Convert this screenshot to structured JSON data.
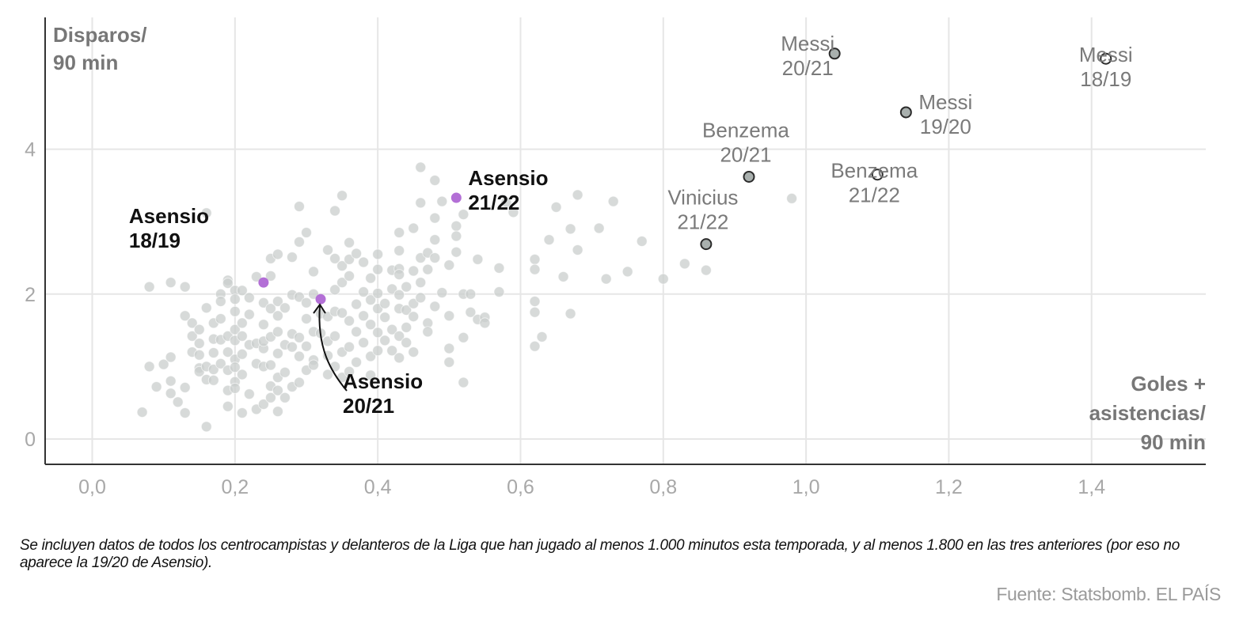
{
  "chart_data": {
    "type": "scatter",
    "title": "",
    "xlabel": [
      "Goles +",
      "asistencias/",
      "90 min"
    ],
    "ylabel": [
      "Disparos/",
      "90 min"
    ],
    "xlim": [
      -0.066,
      1.56
    ],
    "ylim": [
      -0.35,
      5.82
    ],
    "xticks": [
      0.0,
      0.2,
      0.4,
      0.6,
      0.8,
      1.0,
      1.2,
      1.4
    ],
    "xtick_labels": [
      "0,0",
      "0,2",
      "0,4",
      "0,6",
      "0,8",
      "1,0",
      "1,2",
      "1,4"
    ],
    "yticks": [
      0,
      2,
      4
    ],
    "ytick_labels": [
      "0",
      "2",
      "4"
    ],
    "grid": true,
    "colors": {
      "background_dot": "#c9cdcc",
      "asensio": "#b36fd6",
      "asensio_label": "#111111",
      "star_fill": "#a9b0ae",
      "star_stroke": "#2b2b2b",
      "star_label": "#7a7a7a",
      "axis": "#333333",
      "grid": "#e6e6e6",
      "tick": "#a8a8a8"
    },
    "highlighted": [
      {
        "name": "Messi",
        "season": "20/21",
        "x": 1.04,
        "y": 5.32,
        "group": "star",
        "fill": true
      },
      {
        "name": "Messi",
        "season": "19/20",
        "x": 1.14,
        "y": 4.51,
        "group": "star",
        "fill": true
      },
      {
        "name": "Messi",
        "season": "18/19",
        "x": 1.42,
        "y": 5.25,
        "group": "star",
        "fill": false
      },
      {
        "name": "Benzema",
        "season": "20/21",
        "x": 0.92,
        "y": 3.62,
        "group": "star",
        "fill": true
      },
      {
        "name": "Benzema",
        "season": "21/22",
        "x": 1.1,
        "y": 3.65,
        "group": "star",
        "fill": false
      },
      {
        "name": "Vinicius",
        "season": "21/22",
        "x": 0.86,
        "y": 2.69,
        "group": "star",
        "fill": true
      },
      {
        "name": "Asensio",
        "season": "18/19",
        "x": 0.24,
        "y": 2.16,
        "group": "asensio"
      },
      {
        "name": "Asensio",
        "season": "20/21",
        "x": 0.32,
        "y": 1.93,
        "group": "asensio"
      },
      {
        "name": "Asensio",
        "season": "21/22",
        "x": 0.51,
        "y": 3.33,
        "group": "asensio"
      }
    ],
    "others": [
      [
        0.07,
        0.37
      ],
      [
        0.08,
        2.1
      ],
      [
        0.08,
        1.0
      ],
      [
        0.1,
        1.03
      ],
      [
        0.09,
        0.72
      ],
      [
        0.11,
        2.16
      ],
      [
        0.11,
        1.13
      ],
      [
        0.11,
        0.8
      ],
      [
        0.11,
        0.63
      ],
      [
        0.12,
        0.51
      ],
      [
        0.13,
        2.1
      ],
      [
        0.13,
        1.7
      ],
      [
        0.13,
        0.71
      ],
      [
        0.13,
        0.36
      ],
      [
        0.14,
        1.2
      ],
      [
        0.14,
        1.6
      ],
      [
        0.14,
        1.42
      ],
      [
        0.15,
        1.51
      ],
      [
        0.15,
        1.32
      ],
      [
        0.15,
        1.16
      ],
      [
        0.15,
        0.98
      ],
      [
        0.15,
        0.93
      ],
      [
        0.16,
        3.12
      ],
      [
        0.16,
        1.81
      ],
      [
        0.16,
        1.0
      ],
      [
        0.16,
        0.82
      ],
      [
        0.16,
        0.17
      ],
      [
        0.17,
        1.6
      ],
      [
        0.17,
        1.38
      ],
      [
        0.17,
        1.19
      ],
      [
        0.17,
        0.96
      ],
      [
        0.17,
        0.81
      ],
      [
        0.18,
        2.0
      ],
      [
        0.18,
        1.9
      ],
      [
        0.18,
        1.66
      ],
      [
        0.18,
        1.37
      ],
      [
        0.18,
        1.04
      ],
      [
        0.19,
        2.19
      ],
      [
        0.19,
        2.15
      ],
      [
        0.19,
        1.42
      ],
      [
        0.19,
        1.2
      ],
      [
        0.19,
        0.95
      ],
      [
        0.19,
        0.67
      ],
      [
        0.19,
        0.45
      ],
      [
        0.2,
        2.05
      ],
      [
        0.2,
        1.93
      ],
      [
        0.2,
        1.76
      ],
      [
        0.2,
        1.51
      ],
      [
        0.2,
        1.36
      ],
      [
        0.2,
        1.1
      ],
      [
        0.2,
        0.99
      ],
      [
        0.2,
        0.79
      ],
      [
        0.2,
        0.7
      ],
      [
        0.21,
        2.05
      ],
      [
        0.21,
        1.6
      ],
      [
        0.21,
        1.42
      ],
      [
        0.21,
        1.17
      ],
      [
        0.21,
        0.89
      ],
      [
        0.21,
        0.36
      ],
      [
        0.22,
        1.95
      ],
      [
        0.22,
        1.72
      ],
      [
        0.22,
        1.3
      ],
      [
        0.22,
        0.62
      ],
      [
        0.23,
        2.24
      ],
      [
        0.23,
        1.32
      ],
      [
        0.23,
        1.04
      ],
      [
        0.23,
        0.41
      ],
      [
        0.24,
        1.88
      ],
      [
        0.24,
        1.58
      ],
      [
        0.24,
        1.25
      ],
      [
        0.24,
        1.35
      ],
      [
        0.24,
        1.0
      ],
      [
        0.24,
        0.48
      ],
      [
        0.25,
        2.49
      ],
      [
        0.25,
        2.25
      ],
      [
        0.25,
        1.8
      ],
      [
        0.25,
        1.41
      ],
      [
        0.25,
        1.02
      ],
      [
        0.25,
        0.73
      ],
      [
        0.25,
        0.57
      ],
      [
        0.26,
        2.55
      ],
      [
        0.26,
        1.9
      ],
      [
        0.26,
        1.7
      ],
      [
        0.26,
        1.48
      ],
      [
        0.26,
        1.18
      ],
      [
        0.26,
        0.85
      ],
      [
        0.26,
        0.67
      ],
      [
        0.26,
        0.38
      ],
      [
        0.27,
        1.81
      ],
      [
        0.27,
        1.3
      ],
      [
        0.27,
        0.92
      ],
      [
        0.27,
        0.57
      ],
      [
        0.28,
        2.51
      ],
      [
        0.28,
        1.99
      ],
      [
        0.28,
        1.45
      ],
      [
        0.28,
        1.27
      ],
      [
        0.28,
        0.72
      ],
      [
        0.29,
        3.21
      ],
      [
        0.29,
        2.72
      ],
      [
        0.29,
        1.96
      ],
      [
        0.29,
        1.4
      ],
      [
        0.29,
        1.14
      ],
      [
        0.29,
        0.78
      ],
      [
        0.3,
        2.85
      ],
      [
        0.3,
        1.88
      ],
      [
        0.3,
        1.66
      ],
      [
        0.3,
        1.28
      ],
      [
        0.3,
        0.95
      ],
      [
        0.31,
        2.31
      ],
      [
        0.31,
        2.0
      ],
      [
        0.31,
        1.48
      ],
      [
        0.31,
        1.09
      ],
      [
        0.31,
        1.02
      ],
      [
        0.32,
        1.73
      ],
      [
        0.32,
        1.46
      ],
      [
        0.33,
        2.61
      ],
      [
        0.33,
        1.69
      ],
      [
        0.33,
        1.35
      ],
      [
        0.33,
        1.15
      ],
      [
        0.33,
        0.89
      ],
      [
        0.34,
        3.15
      ],
      [
        0.34,
        2.49
      ],
      [
        0.34,
        2.06
      ],
      [
        0.34,
        1.76
      ],
      [
        0.34,
        1.42
      ],
      [
        0.34,
        1.0
      ],
      [
        0.35,
        3.36
      ],
      [
        0.35,
        2.39
      ],
      [
        0.35,
        2.16
      ],
      [
        0.35,
        1.74
      ],
      [
        0.35,
        1.2
      ],
      [
        0.35,
        0.85
      ],
      [
        0.36,
        2.71
      ],
      [
        0.36,
        2.48
      ],
      [
        0.36,
        2.25
      ],
      [
        0.36,
        1.63
      ],
      [
        0.36,
        1.27
      ],
      [
        0.36,
        0.93
      ],
      [
        0.37,
        2.56
      ],
      [
        0.37,
        1.86
      ],
      [
        0.37,
        1.48
      ],
      [
        0.37,
        1.06
      ],
      [
        0.38,
        2.44
      ],
      [
        0.38,
        2.03
      ],
      [
        0.38,
        1.7
      ],
      [
        0.38,
        1.33
      ],
      [
        0.39,
        2.22
      ],
      [
        0.39,
        1.92
      ],
      [
        0.39,
        1.58
      ],
      [
        0.39,
        1.14
      ],
      [
        0.39,
        0.88
      ],
      [
        0.4,
        2.55
      ],
      [
        0.4,
        2.34
      ],
      [
        0.4,
        2.01
      ],
      [
        0.4,
        1.8
      ],
      [
        0.4,
        1.47
      ],
      [
        0.4,
        1.22
      ],
      [
        0.41,
        1.87
      ],
      [
        0.41,
        1.68
      ],
      [
        0.41,
        1.36
      ],
      [
        0.42,
        2.33
      ],
      [
        0.42,
        2.07
      ],
      [
        0.42,
        1.51
      ],
      [
        0.42,
        1.22
      ],
      [
        0.43,
        2.85
      ],
      [
        0.43,
        2.6
      ],
      [
        0.43,
        2.35
      ],
      [
        0.43,
        2.27
      ],
      [
        0.43,
        1.99
      ],
      [
        0.43,
        1.8
      ],
      [
        0.43,
        1.42
      ],
      [
        0.43,
        1.12
      ],
      [
        0.44,
        2.1
      ],
      [
        0.44,
        1.78
      ],
      [
        0.44,
        1.54
      ],
      [
        0.44,
        1.33
      ],
      [
        0.45,
        2.91
      ],
      [
        0.45,
        2.32
      ],
      [
        0.45,
        1.87
      ],
      [
        0.45,
        1.69
      ],
      [
        0.45,
        1.2
      ],
      [
        0.46,
        3.75
      ],
      [
        0.46,
        3.26
      ],
      [
        0.46,
        2.5
      ],
      [
        0.46,
        2.16
      ],
      [
        0.46,
        1.95
      ],
      [
        0.47,
        2.57
      ],
      [
        0.47,
        2.34
      ],
      [
        0.47,
        1.6
      ],
      [
        0.47,
        1.48
      ],
      [
        0.48,
        3.57
      ],
      [
        0.48,
        3.05
      ],
      [
        0.48,
        2.75
      ],
      [
        0.48,
        2.5
      ],
      [
        0.48,
        1.83
      ],
      [
        0.49,
        3.28
      ],
      [
        0.49,
        2.02
      ],
      [
        0.5,
        2.4
      ],
      [
        0.5,
        1.7
      ],
      [
        0.5,
        1.25
      ],
      [
        0.5,
        1.06
      ],
      [
        0.51,
        2.94
      ],
      [
        0.51,
        2.8
      ],
      [
        0.51,
        2.58
      ],
      [
        0.52,
        3.1
      ],
      [
        0.52,
        2.0
      ],
      [
        0.52,
        1.4
      ],
      [
        0.52,
        0.78
      ],
      [
        0.53,
        2.0
      ],
      [
        0.53,
        1.75
      ],
      [
        0.54,
        2.48
      ],
      [
        0.54,
        1.65
      ],
      [
        0.55,
        1.68
      ],
      [
        0.55,
        1.6
      ],
      [
        0.57,
        2.36
      ],
      [
        0.57,
        2.03
      ],
      [
        0.58,
        3.27
      ],
      [
        0.59,
        3.13
      ],
      [
        0.62,
        1.9
      ],
      [
        0.62,
        1.75
      ],
      [
        0.62,
        2.48
      ],
      [
        0.62,
        2.34
      ],
      [
        0.62,
        1.28
      ],
      [
        0.63,
        1.41
      ],
      [
        0.64,
        2.75
      ],
      [
        0.65,
        3.2
      ],
      [
        0.66,
        2.24
      ],
      [
        0.67,
        1.73
      ],
      [
        0.67,
        2.9
      ],
      [
        0.68,
        2.61
      ],
      [
        0.68,
        3.37
      ],
      [
        0.71,
        2.91
      ],
      [
        0.72,
        2.21
      ],
      [
        0.73,
        3.28
      ],
      [
        0.75,
        2.31
      ],
      [
        0.77,
        2.73
      ],
      [
        0.8,
        2.21
      ],
      [
        0.83,
        2.42
      ],
      [
        0.86,
        2.33
      ],
      [
        0.98,
        3.32
      ]
    ]
  },
  "annotations": {
    "ylabel_lines": [
      "Disparos/",
      "90 min"
    ],
    "xlabel_lines": [
      "Goles +",
      "asistencias/",
      "90 min"
    ]
  },
  "footer": {
    "note": "Se incluyen datos de todos los centrocampistas y delanteros de la Liga que han jugado al menos 1.000 minutos esta temporada, y al menos 1.800 en las tres anteriores (por eso no aparece la 19/20 de Asensio).",
    "source": "Fuente: Statsbomb. EL PAÍS"
  }
}
